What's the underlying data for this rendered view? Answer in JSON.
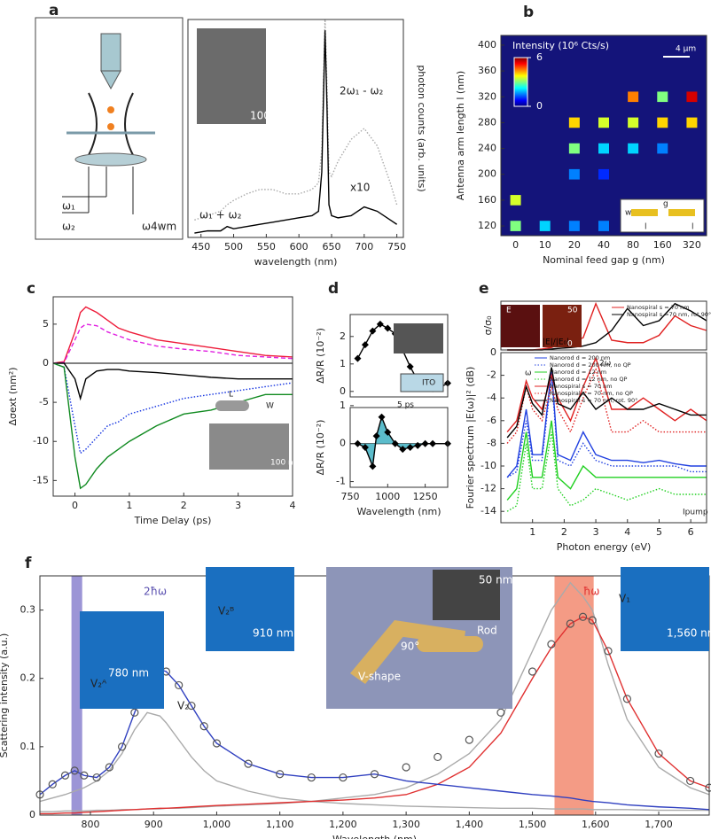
{
  "chart_data": [
    {
      "type": "line",
      "panel": "a",
      "xlabel": "wavelength (nm)",
      "ylabel": "photon counts (arb. units)",
      "ylabel_side": "right",
      "xlim": [
        430,
        760
      ],
      "ylim": [
        0,
        1
      ],
      "xticks": [
        450,
        500,
        550,
        600,
        650,
        700,
        750
      ],
      "x": [
        440,
        460,
        480,
        490,
        500,
        520,
        540,
        560,
        580,
        600,
        620,
        630,
        635,
        640,
        643,
        646,
        650,
        660,
        680,
        700,
        720,
        740,
        750
      ],
      "series": [
        {
          "color": "#aaaaaa",
          "dash": "dotted",
          "values": [
            0.08,
            0.1,
            0.12,
            0.15,
            0.17,
            0.2,
            0.22,
            0.22,
            0.2,
            0.2,
            0.22,
            0.25,
            0.4,
            1.0,
            0.7,
            0.3,
            0.28,
            0.35,
            0.45,
            0.5,
            0.42,
            0.25,
            0.15
          ]
        },
        {
          "color": "#000000",
          "dash": "solid",
          "values": [
            0.02,
            0.03,
            0.03,
            0.05,
            0.04,
            0.05,
            0.06,
            0.07,
            0.08,
            0.09,
            0.1,
            0.12,
            0.3,
            0.95,
            0.6,
            0.15,
            0.1,
            0.09,
            0.1,
            0.14,
            0.12,
            0.08,
            0.06
          ]
        }
      ],
      "annotations": [
        "2ω₁ - ω₂",
        "ω₁ + ω₂",
        "x10",
        "100nm",
        "ω₁",
        "ω₂",
        "ω4wm"
      ]
    },
    {
      "type": "heatmap",
      "panel": "b",
      "xlabel": "Nominal feed gap g (nm)",
      "ylabel": "Antenna arm length l (nm)",
      "title": "Intensity (10⁶ Cts/s)",
      "categories": [
        "0",
        "10",
        "20",
        "40",
        "80",
        "160",
        "320"
      ],
      "rows": [
        120,
        160,
        200,
        240,
        280,
        320
      ],
      "ylim": [
        105,
        415
      ],
      "yticks": [
        120,
        160,
        200,
        240,
        280,
        320,
        360,
        400
      ],
      "values": [
        [
          3,
          2,
          1.5,
          1.5,
          null,
          null,
          null
        ],
        [
          3.5,
          null,
          null,
          null,
          null,
          null,
          null
        ],
        [
          null,
          null,
          1.5,
          1,
          null,
          null,
          null
        ],
        [
          null,
          null,
          3,
          2,
          2,
          1.5,
          null
        ],
        [
          null,
          null,
          4,
          3.5,
          3.5,
          4,
          4
        ],
        [
          null,
          null,
          null,
          null,
          4.5,
          3,
          5.5
        ]
      ],
      "clim": [
        0,
        6
      ],
      "cticks": [
        6,
        0
      ],
      "colormap": "jet",
      "background": "#14147a",
      "annotations": [
        "4 µm",
        "w",
        "g",
        "l",
        "l"
      ]
    },
    {
      "type": "line",
      "panel": "c",
      "xlabel": "Time Delay (ps)",
      "ylabel": "Δσext (nm²)",
      "xlim": [
        -0.4,
        4
      ],
      "ylim": [
        -17,
        8.5
      ],
      "xticks": [
        0,
        1,
        2,
        3,
        4
      ],
      "yticks": [
        5,
        0,
        -5,
        -10,
        -15
      ],
      "reference_line": 0,
      "x": [
        -0.4,
        -0.2,
        0,
        0.1,
        0.2,
        0.4,
        0.6,
        0.8,
        1,
        1.5,
        2,
        2.5,
        3,
        3.5,
        4
      ],
      "series": [
        {
          "color": "#ee1c3a",
          "dash": "solid",
          "values": [
            0,
            0.2,
            4,
            6.5,
            7.2,
            6.5,
            5.5,
            4.5,
            4,
            3,
            2.5,
            2,
            1.5,
            1,
            0.8
          ]
        },
        {
          "color": "#e020e0",
          "dash": "dashed",
          "values": [
            0,
            0.1,
            3,
            4.5,
            5,
            4.8,
            4,
            3.5,
            3,
            2.2,
            1.8,
            1.5,
            1,
            0.8,
            0.6
          ]
        },
        {
          "color": "#000000",
          "dash": "solid",
          "values": [
            0,
            0,
            -2,
            -4.5,
            -2,
            -1,
            -0.8,
            -0.8,
            -1,
            -1.2,
            -1.5,
            -1.8,
            -2,
            -2,
            -2
          ]
        },
        {
          "color": "#1030e0",
          "dash": "dotted",
          "values": [
            0,
            -0.5,
            -8,
            -11.5,
            -11,
            -9.5,
            -8,
            -7.5,
            -6.5,
            -5.5,
            -4.5,
            -4,
            -3.5,
            -3,
            -2.5
          ]
        },
        {
          "color": "#108a20",
          "dash": "solid",
          "values": [
            0,
            -0.5,
            -12,
            -16,
            -15.5,
            -13.5,
            -12,
            -11,
            -10,
            -8,
            -6.5,
            -6,
            -5,
            -4,
            -4
          ]
        }
      ],
      "annotations": [
        "L",
        "W",
        "100 nm"
      ]
    },
    {
      "type": "line",
      "panel": "d",
      "ylabel": "ΔR/R (10⁻²)",
      "xlim": [
        750,
        1400
      ],
      "ylim": [
        -0.2,
        2.8
      ],
      "yticks": [
        0,
        1,
        2
      ],
      "x": [
        800,
        850,
        900,
        950,
        1000,
        1050,
        1100,
        1150,
        1200,
        1250,
        1300,
        1350,
        1400
      ],
      "series": [
        {
          "color": "#000000",
          "dash": "solid",
          "marker": "diamond",
          "values": [
            1.2,
            1.7,
            2.2,
            2.45,
            2.3,
            2.1,
            1.5,
            0.9,
            0.4,
            0.15,
            0.1,
            0.15,
            0.3
          ]
        }
      ],
      "annotations": [
        "ITO"
      ]
    },
    {
      "type": "line",
      "xlabel": "Wavelength (nm)",
      "ylabel": "ΔR/R (10⁻²)",
      "xlim": [
        750,
        1400
      ],
      "ylim": [
        -1.15,
        0.95
      ],
      "xticks": [
        750,
        1000,
        1250
      ],
      "yticks": [
        1,
        0,
        -1
      ],
      "reference_line": 0,
      "x": [
        800,
        850,
        900,
        925,
        960,
        1000,
        1050,
        1100,
        1150,
        1200,
        1250,
        1300,
        1400
      ],
      "series": [
        {
          "color": "#000000",
          "dash": "solid",
          "marker": "diamond",
          "area_color": "#5bbccb",
          "values": [
            0,
            -0.1,
            -0.6,
            0.2,
            0.7,
            0.3,
            0,
            -0.15,
            -0.1,
            -0.05,
            0,
            0,
            0
          ]
        }
      ],
      "annotations": [
        "5 ps"
      ]
    },
    {
      "type": "line",
      "panel": "e",
      "ylabel": "σ/σ₀",
      "xlim": [
        0,
        6.5
      ],
      "ylim": [
        0,
        1
      ],
      "x": [
        0.2,
        0.5,
        0.8,
        1,
        1.3,
        1.6,
        1.8,
        2.2,
        2.6,
        3,
        3.5,
        4,
        4.5,
        5,
        5.5,
        6,
        6.5
      ],
      "series": [
        {
          "name": "Nanospiral s = 70 nm",
          "color": "#e02020",
          "dash": "solid",
          "values": [
            0,
            0,
            0,
            0,
            0.02,
            0.05,
            0.1,
            0.15,
            0.25,
            0.95,
            0.2,
            0.15,
            0.15,
            0.3,
            0.7,
            0.5,
            0.4
          ]
        },
        {
          "name": "Nanospiral s =70 nm, rot.90°",
          "color": "#000000",
          "dash": "solid",
          "values": [
            0,
            0,
            0,
            0,
            0,
            0.02,
            0.03,
            0.05,
            0.08,
            0.15,
            0.4,
            0.85,
            0.5,
            0.6,
            0.95,
            0.8,
            0.6
          ]
        }
      ],
      "annotations": [
        "E",
        "|E|/|E₀|",
        "50",
        "0"
      ]
    },
    {
      "type": "line",
      "xlabel": "Photon energy (eV)",
      "ylabel": "Fourier spectrum |E(ω)|² (dB)",
      "xlim": [
        0,
        6.5
      ],
      "ylim": [
        -15,
        0
      ],
      "xticks": [
        1,
        2,
        3,
        4,
        5,
        6
      ],
      "yticks": [
        -14,
        -12,
        -10,
        -8,
        -6,
        -4,
        -2,
        0
      ],
      "x": [
        0.2,
        0.5,
        0.8,
        1,
        1.3,
        1.6,
        1.8,
        2.2,
        2.6,
        3,
        3.5,
        4,
        4.5,
        5,
        5.5,
        6,
        6.5
      ],
      "series": [
        {
          "name": "Nanorod d = 200 nm",
          "color": "#2040e0",
          "dash": "solid",
          "values": [
            -11,
            -10,
            -5,
            -9,
            -9,
            -1.5,
            -9,
            -9.5,
            -7,
            -9,
            -9.5,
            -9.5,
            -9.7,
            -9.5,
            -9.8,
            -10,
            -10
          ]
        },
        {
          "name": "Nanorod d = 200 nm, no QP",
          "color": "#2040e0",
          "dash": "dotted",
          "values": [
            -11,
            -10.5,
            -6,
            -9.5,
            -9.5,
            -2,
            -9.5,
            -10,
            -8,
            -9.5,
            -10,
            -10,
            -10,
            -10,
            -10,
            -10.5,
            -10.5
          ]
        },
        {
          "name": "Nanorod d = 12 nm",
          "color": "#20d020",
          "dash": "solid",
          "values": [
            -13,
            -12,
            -7,
            -11,
            -11,
            -6,
            -11,
            -12,
            -10,
            -11,
            -11,
            -11,
            -11,
            -11,
            -11,
            -11,
            -11
          ]
        },
        {
          "name": "Nanorod d = 12 nm, no QP",
          "color": "#20d020",
          "dash": "dotted",
          "values": [
            -14,
            -13.5,
            -8,
            -12,
            -12,
            -7,
            -12,
            -13.5,
            -13,
            -12,
            -12.5,
            -13,
            -12.5,
            -12,
            -12.5,
            -12.5,
            -12.5
          ]
        },
        {
          "name": "Nanospiral s = 70 nm",
          "color": "#e02020",
          "dash": "solid",
          "values": [
            -7,
            -6,
            -2.5,
            -4,
            -5,
            -2,
            -4,
            -6,
            -3,
            -0.5,
            -5,
            -5,
            -4,
            -5,
            -6,
            -5,
            -6
          ]
        },
        {
          "name": "Nanospiral s = 70 nm, no QP",
          "color": "#e02020",
          "dash": "dotted",
          "values": [
            -8,
            -7,
            -3,
            -5,
            -6,
            -3,
            -5,
            -7,
            -4,
            -1.5,
            -7,
            -7,
            -6,
            -7,
            -7,
            -7,
            -7
          ]
        },
        {
          "name": "Nanospiral s = 70 nm, rot. 90°",
          "color": "#000000",
          "dash": "solid",
          "values": [
            -7.5,
            -6.5,
            -3,
            -4.5,
            -5.5,
            -1.3,
            -4.5,
            -5,
            -3.5,
            -5,
            -4,
            -5,
            -5,
            -4.5,
            -5,
            -5.5,
            -5.5
          ]
        }
      ],
      "annotations": [
        "ω",
        "2ω",
        "Ipump = I0"
      ]
    },
    {
      "type": "line",
      "panel": "f",
      "xlabel": "Wavelength (nm)",
      "ylabel": "Scattering intensity (a.u.)",
      "xlim": [
        720,
        1780
      ],
      "ylim": [
        0,
        0.35
      ],
      "xticks": [
        800,
        900,
        {
          "value": 1000,
          "label": "1,000"
        },
        {
          "value": 1100,
          "label": "1,100"
        },
        {
          "value": 1200,
          "label": "1,200"
        },
        {
          "value": 1300,
          "label": "1,300"
        },
        {
          "value": 1400,
          "label": "1,400"
        },
        {
          "value": 1500,
          "label": "1,500"
        },
        {
          "value": 1600,
          "label": "1,600"
        },
        {
          "value": 1700,
          "label": "1,700"
        }
      ],
      "yticks": [
        0,
        0.1,
        0.2,
        0.3
      ],
      "bands": [
        {
          "range": [
            770,
            787
          ],
          "color": "#7b72c8"
        },
        {
          "range": [
            1535,
            1597
          ],
          "color": "#f07a5c"
        }
      ],
      "x": [
        720,
        740,
        760,
        775,
        790,
        810,
        830,
        850,
        870,
        890,
        910,
        920,
        940,
        960,
        980,
        1000,
        1050,
        1100,
        1150,
        1200,
        1250,
        1300,
        1350,
        1400,
        1450,
        1500,
        1530,
        1560,
        1580,
        1595,
        1620,
        1650,
        1700,
        1750,
        1780
      ],
      "series": [
        {
          "color": "#aaaaaa",
          "dash": "solid",
          "values": [
            0.02,
            0.025,
            0.03,
            0.035,
            0.04,
            0.05,
            0.065,
            0.09,
            0.125,
            0.15,
            0.145,
            0.135,
            0.11,
            0.085,
            0.065,
            0.05,
            0.035,
            0.025,
            0.02,
            0.017,
            0.015,
            0.013,
            0.012,
            0.011,
            0.01,
            0.01,
            0.009,
            0.009,
            0.009,
            0.008,
            0.008,
            0.008,
            0.007,
            0.007,
            0.007
          ]
        },
        {
          "color": "#aaaaaa",
          "dash": "solid",
          "values": [
            0.005,
            0.005,
            0.006,
            0.006,
            0.006,
            0.007,
            0.007,
            0.008,
            0.008,
            0.009,
            0.009,
            0.01,
            0.01,
            0.011,
            0.012,
            0.013,
            0.015,
            0.017,
            0.02,
            0.025,
            0.03,
            0.04,
            0.06,
            0.09,
            0.14,
            0.24,
            0.3,
            0.34,
            0.32,
            0.3,
            0.22,
            0.14,
            0.07,
            0.04,
            0.03
          ]
        },
        {
          "color": "#e03030",
          "dash": "solid",
          "values": [
            0.002,
            0.002,
            0.003,
            0.003,
            0.004,
            0.005,
            0.006,
            0.007,
            0.008,
            0.009,
            0.01,
            0.01,
            0.011,
            0.012,
            0.013,
            0.014,
            0.016,
            0.018,
            0.02,
            0.022,
            0.025,
            0.03,
            0.045,
            0.07,
            0.12,
            0.2,
            0.245,
            0.28,
            0.29,
            0.285,
            0.24,
            0.17,
            0.09,
            0.05,
            0.04
          ]
        },
        {
          "color": "#3040c0",
          "dash": "solid",
          "values": [
            0.03,
            0.045,
            0.058,
            0.065,
            0.058,
            0.055,
            0.07,
            0.1,
            0.15,
            0.195,
            0.213,
            0.21,
            0.19,
            0.16,
            0.13,
            0.105,
            0.075,
            0.06,
            0.055,
            0.055,
            0.06,
            0.05,
            0.045,
            0.04,
            0.035,
            0.03,
            0.028,
            0.025,
            0.022,
            0.02,
            0.018,
            0.015,
            0.012,
            0.01,
            0.008
          ]
        },
        {
          "color": "#555555",
          "dash": "none",
          "marker": "circle",
          "values": [
            0.03,
            0.045,
            0.058,
            0.065,
            0.058,
            0.055,
            0.07,
            0.1,
            0.15,
            0.195,
            0.213,
            0.21,
            0.19,
            0.16,
            0.13,
            0.105,
            0.075,
            0.06,
            0.055,
            0.055,
            0.06,
            0.07,
            0.085,
            0.11,
            0.15,
            0.21,
            0.25,
            0.28,
            0.29,
            0.285,
            0.24,
            0.17,
            0.09,
            0.05,
            0.04
          ]
        }
      ],
      "annotations": [
        "2ħω",
        "ħω",
        "V₂ᴬ",
        "V₂ᴮ",
        "V₂",
        "V₁",
        "780 nm",
        "910 nm",
        "1,560 nm",
        "50 nm",
        "90°",
        "V-shape",
        "Rod"
      ]
    }
  ]
}
